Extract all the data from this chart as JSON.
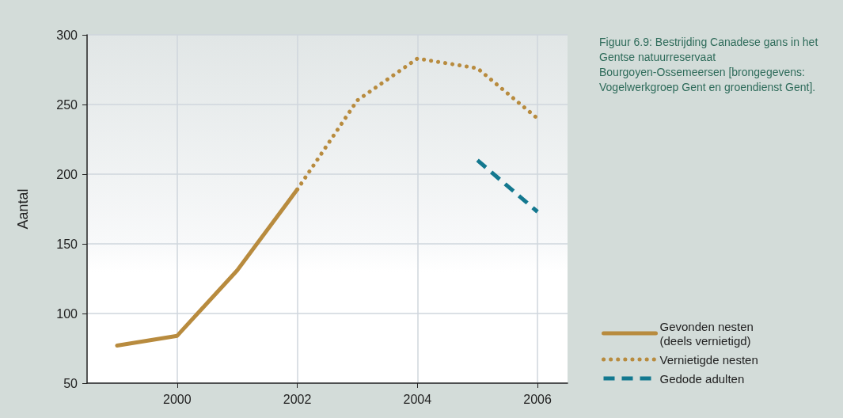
{
  "chart_data": {
    "type": "line",
    "title": "Figuur 6.9: Bestrijding Canadese gans in het Gentse natuurreservaat Bourgoyen-Ossemeersen [brongegevens: Vogelwerkgroep Gent en groendienst Gent].",
    "ylabel": "Aantal",
    "xlim": [
      1998.5,
      2006.5
    ],
    "xticks": [
      2000,
      2002,
      2004,
      2006
    ],
    "ylim": [
      50,
      300
    ],
    "yticks": [
      50,
      100,
      150,
      200,
      250,
      300
    ],
    "grid": true,
    "legend": "right",
    "marker": "none",
    "series": [
      {
        "name": "Gevonden nesten (deels vernietigd)",
        "color": "#b88b3e",
        "line_style": "solid",
        "x": [
          1999,
          2000,
          2001,
          2002
        ],
        "values": [
          77,
          84,
          131,
          189
        ]
      },
      {
        "name": "Vernietigde nesten",
        "color": "#b88b3e",
        "line_style": "dotted",
        "x": [
          2002,
          2003,
          2004,
          2005,
          2006
        ],
        "values": [
          189,
          253,
          283,
          276,
          240
        ]
      },
      {
        "name": "Gedode adulten",
        "color": "#13788f",
        "line_style": "dashed",
        "x": [
          2005,
          2006
        ],
        "values": [
          210,
          173
        ]
      }
    ]
  }
}
